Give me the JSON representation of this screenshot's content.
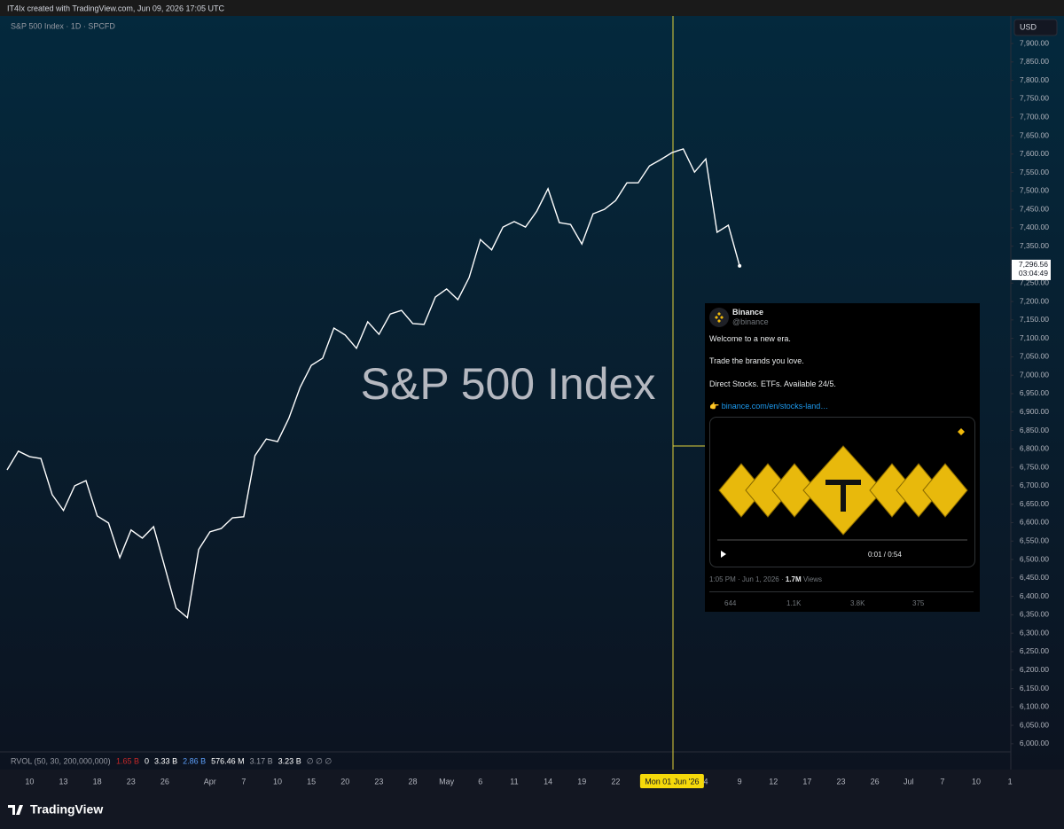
{
  "header": {
    "text": "IT4Ix created with TradingView.com, Jun 09, 2026 17:05 UTC"
  },
  "chart_data": {
    "type": "line",
    "title": "S&P 500 Index",
    "subtitle": "S&P 500 Index · 1D · SPCFD",
    "currency": "USD",
    "categories": [
      null,
      null,
      "10",
      null,
      null,
      "13",
      null,
      null,
      "18",
      null,
      null,
      "23",
      null,
      null,
      "26",
      null,
      null,
      null,
      "Apr",
      null,
      null,
      "7",
      null,
      null,
      "10",
      null,
      null,
      "15",
      null,
      null,
      "20",
      null,
      null,
      "23",
      null,
      null,
      "28",
      null,
      null,
      "May",
      null,
      null,
      "6",
      null,
      null,
      "11",
      null,
      null,
      "14",
      null,
      null,
      "19",
      null,
      null,
      "22",
      null,
      null,
      null,
      null,
      "Mon 01 Jun '26",
      null,
      null,
      "4",
      null,
      null,
      "9",
      null,
      null,
      "12",
      null,
      null,
      "17",
      null,
      null,
      "23",
      null,
      null,
      "26",
      null,
      null,
      "Jul",
      null,
      null,
      "7",
      null,
      null,
      "10",
      null,
      null,
      "1"
    ],
    "highlighted_category": 59,
    "series": [
      {
        "name": "S&P 500 Index",
        "color": "#ffffff",
        "values": [
          6743,
          6794,
          6779,
          6774,
          6676,
          6633,
          6700,
          6714,
          6618,
          6599,
          6505,
          6580,
          6558,
          6589,
          6479,
          6368,
          6342,
          6527,
          6575,
          6584,
          6613,
          6616,
          6782,
          6827,
          6820,
          6883,
          6967,
          7027,
          7046,
          7128,
          7109,
          7073,
          7145,
          7111,
          7166,
          7176,
          7140,
          7138,
          7212,
          7234,
          7205,
          7265,
          7368,
          7340,
          7402,
          7417,
          7402,
          7445,
          7506,
          7414,
          7409,
          7356,
          7438,
          7450,
          7474,
          7522,
          7522,
          7568,
          7585,
          7604,
          7614,
          7551,
          7587,
          7388,
          7407,
          7296.56,
          null,
          null,
          null,
          null,
          null,
          null,
          null,
          null,
          null,
          null,
          null,
          null,
          null,
          null,
          null,
          null,
          null,
          null,
          null,
          null,
          null,
          null,
          null,
          null
        ],
        "value_labels": [
          null,
          null,
          null,
          null,
          null,
          null,
          null,
          null,
          null,
          null,
          null,
          null,
          null,
          null,
          null,
          null,
          null,
          null,
          null,
          null,
          null,
          null,
          null,
          null,
          null,
          null,
          null,
          null,
          null,
          null,
          null,
          null,
          null,
          null,
          null,
          null,
          null,
          null,
          null,
          null,
          null,
          null,
          null,
          null,
          null,
          null,
          null,
          null,
          null,
          null,
          null,
          null,
          null,
          null,
          null,
          null,
          null,
          null,
          null,
          null,
          null,
          null,
          null,
          null,
          null,
          "7,296.56",
          null,
          null,
          null,
          null,
          null,
          null,
          null,
          null,
          null,
          null,
          null,
          null,
          null,
          null,
          null,
          null,
          null,
          null,
          null,
          null,
          null,
          null,
          null,
          null
        ]
      }
    ],
    "countdown": "03:04:49",
    "ylim": [
      5978,
      7970
    ],
    "yticks": [
      {
        "value": 6000,
        "label": "6,000.00"
      },
      {
        "value": 6050,
        "label": "6,050.00"
      },
      {
        "value": 6100,
        "label": "6,100.00"
      },
      {
        "value": 6150,
        "label": "6,150.00"
      },
      {
        "value": 6200,
        "label": "6,200.00"
      },
      {
        "value": 6250,
        "label": "6,250.00"
      },
      {
        "value": 6300,
        "label": "6,300.00"
      },
      {
        "value": 6350,
        "label": "6,350.00"
      },
      {
        "value": 6400,
        "label": "6,400.00"
      },
      {
        "value": 6450,
        "label": "6,450.00"
      },
      {
        "value": 6500,
        "label": "6,500.00"
      },
      {
        "value": 6550,
        "label": "6,550.00"
      },
      {
        "value": 6600,
        "label": "6,600.00"
      },
      {
        "value": 6650,
        "label": "6,650.00"
      },
      {
        "value": 6700,
        "label": "6,700.00"
      },
      {
        "value": 6750,
        "label": "6,750.00"
      },
      {
        "value": 6800,
        "label": "6,800.00"
      },
      {
        "value": 6850,
        "label": "6,850.00"
      },
      {
        "value": 6900,
        "label": "6,900.00"
      },
      {
        "value": 6950,
        "label": "6,950.00"
      },
      {
        "value": 7000,
        "label": "7,000.00"
      },
      {
        "value": 7050,
        "label": "7,050.00"
      },
      {
        "value": 7100,
        "label": "7,100.00"
      },
      {
        "value": 7150,
        "label": "7,150.00"
      },
      {
        "value": 7200,
        "label": "7,200.00"
      },
      {
        "value": 7250,
        "label": "7,250.00"
      },
      {
        "value": 7300,
        "label": "7,300.00"
      },
      {
        "value": 7350,
        "label": "7,350.00"
      },
      {
        "value": 7400,
        "label": "7,400.00"
      },
      {
        "value": 7450,
        "label": "7,450.00"
      },
      {
        "value": 7500,
        "label": "7,500.00"
      },
      {
        "value": 7550,
        "label": "7,550.00"
      },
      {
        "value": 7600,
        "label": "7,600.00"
      },
      {
        "value": 7650,
        "label": "7,650.00"
      },
      {
        "value": 7700,
        "label": "7,700.00"
      },
      {
        "value": 7750,
        "label": "7,750.00"
      },
      {
        "value": 7800,
        "label": "7,800.00"
      },
      {
        "value": 7850,
        "label": "7,850.00"
      },
      {
        "value": 7900,
        "label": "7,900.00"
      }
    ],
    "grid": false
  },
  "indicator": {
    "name": "RVOL (50, 30, 200,000,000)",
    "values": [
      {
        "text": "1.65 B",
        "color": "#c62828"
      },
      {
        "text": "0",
        "color": "#ffffff"
      },
      {
        "text": "3.33 B",
        "color": "#ffffff"
      },
      {
        "text": "2.86 B",
        "color": "#5b9cf6"
      },
      {
        "text": "576.46 M",
        "color": "#ffffff"
      },
      {
        "text": "3.17 B",
        "color": "#9598a1"
      },
      {
        "text": "3.23 B",
        "color": "#ffffff"
      },
      {
        "text": "∅ ∅ ∅",
        "color": "#9598a1"
      }
    ]
  },
  "tweet": {
    "name": "Binance",
    "handle": "@binance",
    "lines": [
      "Welcome to a new era.",
      "Trade the brands you love.",
      "Direct Stocks. ETFs. Available 24/5."
    ],
    "link_emoji": "👉",
    "link": "binance.com/en/stocks-land…",
    "video_time": "0:01 / 0:54",
    "meta": "1:05 PM · Jun 1, 2026 · ",
    "views": "1.7M",
    "views_label": " Views",
    "replies": "644",
    "reposts": "1.1K",
    "likes": "3.8K",
    "bookmarks": "375"
  },
  "footer": {
    "brand": "TradingView"
  }
}
